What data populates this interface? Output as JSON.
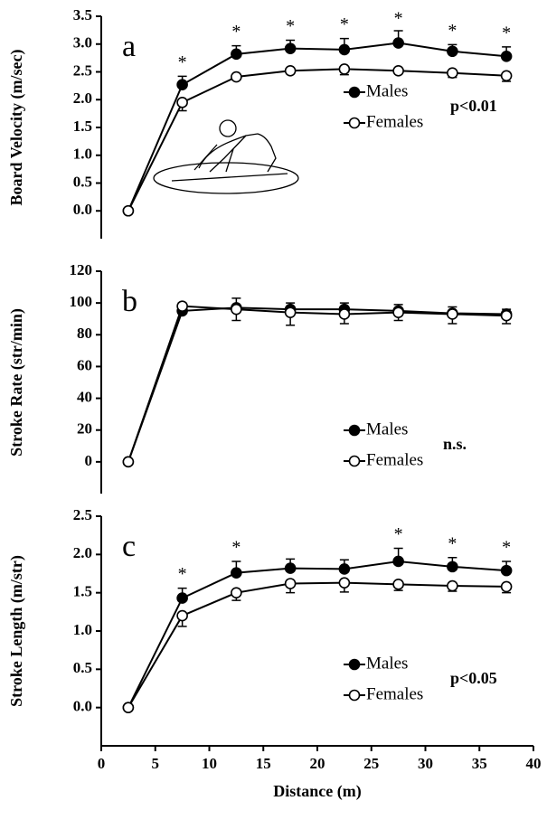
{
  "chart_data": [
    {
      "type": "line",
      "letter": "a",
      "y_label": "Board Velocity (m/sec)",
      "stat": "p<0.01",
      "x": [
        2.5,
        7.5,
        12.5,
        17.5,
        22.5,
        27.5,
        32.5,
        37.5
      ],
      "xlim": [
        0,
        40
      ],
      "ylim": [
        -0.5,
        3.5
      ],
      "yticks": [
        {
          "value": 0,
          "label": "0.0"
        },
        0.5,
        {
          "value": 1,
          "label": "1.0"
        },
        1.5,
        {
          "value": 2,
          "label": "2.0"
        },
        2.5,
        {
          "value": 3,
          "label": "3.0"
        },
        3.5
      ],
      "legend": "center-right",
      "series": [
        {
          "name": "Males",
          "color": "#000000",
          "marker_fill": "#000000",
          "values": [
            0,
            2.27,
            2.82,
            2.92,
            2.9,
            3.02,
            2.87,
            2.78
          ],
          "errors": [
            0,
            0.15,
            0.15,
            0.15,
            0.2,
            0.22,
            0.12,
            0.17
          ]
        },
        {
          "name": "Females",
          "color": "#000000",
          "marker_fill": "#ffffff",
          "values": [
            0,
            1.95,
            2.41,
            2.52,
            2.55,
            2.52,
            2.48,
            2.43
          ],
          "errors": [
            0,
            0.15,
            0.05,
            0.05,
            0.1,
            0.05,
            0.08,
            0.1
          ]
        }
      ],
      "annotations": [
        {
          "x": 7.5,
          "text": "*"
        },
        {
          "x": 12.5,
          "text": "*"
        },
        {
          "x": 17.5,
          "text": "*"
        },
        {
          "x": 22.5,
          "text": "*"
        },
        {
          "x": 27.5,
          "text": "*"
        },
        {
          "x": 32.5,
          "text": "*"
        },
        {
          "x": 37.5,
          "text": "*"
        }
      ]
    },
    {
      "type": "line",
      "letter": "b",
      "y_label": "Stroke Rate (str/min)",
      "stat": "n.s.",
      "x": [
        2.5,
        7.5,
        12.5,
        17.5,
        22.5,
        27.5,
        32.5,
        37.5
      ],
      "xlim": [
        0,
        40
      ],
      "ylim": [
        -20,
        120
      ],
      "yticks": [
        0,
        20,
        40,
        60,
        80,
        100,
        120
      ],
      "legend": "center-right",
      "series": [
        {
          "name": "Males",
          "color": "#000000",
          "marker_fill": "#000000",
          "values": [
            0,
            95,
            97,
            96,
            96,
            95,
            93.5,
            93
          ],
          "errors": [
            0,
            5,
            6,
            4,
            4,
            4,
            4,
            3
          ]
        },
        {
          "name": "Females",
          "color": "#000000",
          "marker_fill": "#ffffff",
          "values": [
            0,
            98,
            96,
            94,
            93,
            94,
            93,
            92
          ],
          "errors": [
            0,
            2,
            7,
            8,
            6,
            5,
            6,
            5
          ]
        }
      ],
      "annotations": []
    },
    {
      "type": "line",
      "letter": "c",
      "y_label": "Stroke Length (m/str)",
      "stat": "p<0.05",
      "x_label": "Distance (m)",
      "x": [
        2.5,
        7.5,
        12.5,
        17.5,
        22.5,
        27.5,
        32.5,
        37.5
      ],
      "xlim": [
        0,
        40
      ],
      "xticks": [
        0,
        5,
        10,
        15,
        20,
        25,
        30,
        35,
        40
      ],
      "ylim": [
        -0.5,
        2.5
      ],
      "yticks": [
        {
          "value": 0,
          "label": "0.0"
        },
        0.5,
        {
          "value": 1,
          "label": "1.0"
        },
        1.5,
        {
          "value": 2,
          "label": "2.0"
        },
        2.5
      ],
      "legend": "center-right",
      "series": [
        {
          "name": "Males",
          "color": "#000000",
          "marker_fill": "#000000",
          "values": [
            0,
            1.43,
            1.76,
            1.82,
            1.81,
            1.91,
            1.84,
            1.79
          ],
          "errors": [
            0,
            0.13,
            0.15,
            0.12,
            0.12,
            0.17,
            0.12,
            0.12
          ]
        },
        {
          "name": "Females",
          "color": "#000000",
          "marker_fill": "#ffffff",
          "values": [
            0,
            1.2,
            1.5,
            1.62,
            1.63,
            1.61,
            1.59,
            1.58
          ],
          "errors": [
            0,
            0.14,
            0.1,
            0.12,
            0.12,
            0.08,
            0.07,
            0.08
          ]
        }
      ],
      "annotations": [
        {
          "x": 7.5,
          "text": "*"
        },
        {
          "x": 12.5,
          "text": "*"
        },
        {
          "x": 27.5,
          "text": "*"
        },
        {
          "x": 32.5,
          "text": "*"
        },
        {
          "x": 37.5,
          "text": "*"
        }
      ]
    }
  ]
}
